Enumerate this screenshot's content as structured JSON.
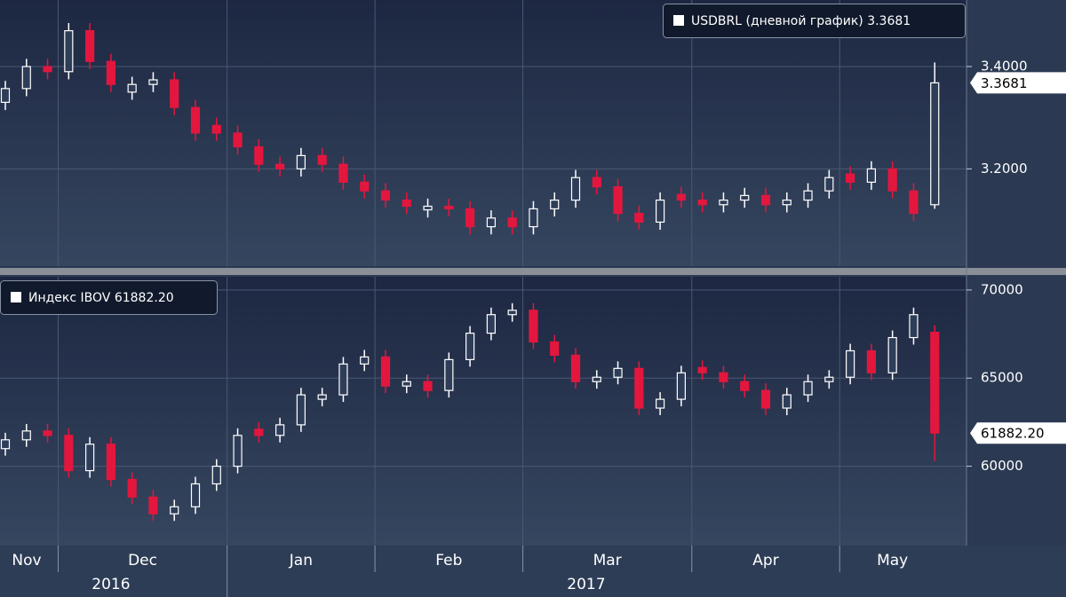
{
  "x_axis": {
    "months": [
      "Nov",
      "Nov",
      "Nov",
      "Dec",
      "Dec",
      "Dec",
      "Dec",
      "Dec",
      "Dec",
      "Dec",
      "Dec",
      "Jan",
      "Jan",
      "Jan",
      "Jan",
      "Jan",
      "Jan",
      "Jan",
      "Feb",
      "Feb",
      "Feb",
      "Feb",
      "Feb",
      "Feb",
      "Feb",
      "Mar",
      "Mar",
      "Mar",
      "Mar",
      "Mar",
      "Mar",
      "Mar",
      "Mar",
      "Apr",
      "Apr",
      "Apr",
      "Apr",
      "Apr",
      "Apr",
      "Apr",
      "May",
      "May",
      "May",
      "May",
      "May"
    ],
    "years": [
      "2016",
      "2016",
      "2016",
      "2016",
      "2016",
      "2016",
      "2016",
      "2016",
      "2016",
      "2016",
      "2016",
      "2017",
      "2017",
      "2017",
      "2017",
      "2017",
      "2017",
      "2017",
      "2017",
      "2017",
      "2017",
      "2017",
      "2017",
      "2017",
      "2017",
      "2017",
      "2017",
      "2017",
      "2017",
      "2017",
      "2017",
      "2017",
      "2017",
      "2017",
      "2017",
      "2017",
      "2017",
      "2017",
      "2017",
      "2017",
      "2017",
      "2017",
      "2017",
      "2017",
      "2017"
    ]
  },
  "chart_data": [
    {
      "type": "candlestick",
      "name": "USDBRL (дневной график)",
      "last_value_label": "3.3681",
      "up_color": "#ffffff",
      "down_color": "#e3173e",
      "open": [
        3.33,
        3.357,
        3.4,
        3.39,
        3.47,
        3.41,
        3.35,
        3.365,
        3.374,
        3.32,
        3.285,
        3.27,
        3.243,
        3.209,
        3.2,
        3.226,
        3.209,
        3.174,
        3.157,
        3.139,
        3.12,
        3.127,
        3.122,
        3.087,
        3.104,
        3.087,
        3.122,
        3.139,
        3.183,
        3.165,
        3.113,
        3.096,
        3.15,
        3.139,
        3.13,
        3.139,
        3.148,
        3.13,
        3.139,
        3.157,
        3.19,
        3.174,
        3.2,
        3.157,
        3.13
      ],
      "high": [
        3.372,
        3.415,
        3.415,
        3.485,
        3.485,
        3.425,
        3.38,
        3.389,
        3.389,
        3.335,
        3.3,
        3.285,
        3.258,
        3.224,
        3.241,
        3.241,
        3.224,
        3.189,
        3.172,
        3.154,
        3.142,
        3.142,
        3.137,
        3.119,
        3.119,
        3.137,
        3.154,
        3.198,
        3.198,
        3.18,
        3.128,
        3.154,
        3.165,
        3.154,
        3.154,
        3.163,
        3.163,
        3.154,
        3.172,
        3.198,
        3.205,
        3.215,
        3.215,
        3.172,
        3.408
      ],
      "low": [
        3.315,
        3.342,
        3.375,
        3.375,
        3.395,
        3.35,
        3.335,
        3.35,
        3.305,
        3.255,
        3.255,
        3.228,
        3.194,
        3.185,
        3.185,
        3.194,
        3.159,
        3.142,
        3.124,
        3.112,
        3.105,
        3.107,
        3.072,
        3.072,
        3.072,
        3.072,
        3.107,
        3.124,
        3.15,
        3.098,
        3.081,
        3.081,
        3.124,
        3.115,
        3.115,
        3.124,
        3.115,
        3.115,
        3.124,
        3.142,
        3.159,
        3.159,
        3.142,
        3.098,
        3.122
      ],
      "close": [
        3.357,
        3.4,
        3.39,
        3.47,
        3.41,
        3.365,
        3.365,
        3.374,
        3.32,
        3.27,
        3.27,
        3.243,
        3.209,
        3.2,
        3.226,
        3.209,
        3.174,
        3.157,
        3.139,
        3.127,
        3.127,
        3.122,
        3.087,
        3.104,
        3.087,
        3.122,
        3.139,
        3.183,
        3.165,
        3.113,
        3.096,
        3.139,
        3.139,
        3.13,
        3.139,
        3.148,
        3.13,
        3.139,
        3.157,
        3.183,
        3.174,
        3.2,
        3.157,
        3.113,
        3.3681
      ],
      "ylim": [
        3.01,
        3.53
      ],
      "yticks": [
        {
          "value": 3.2,
          "label": "3.2000"
        },
        {
          "value": 3.4,
          "label": "3.4000"
        }
      ]
    },
    {
      "type": "candlestick",
      "name": "Индекс IBOV",
      "last_value_label": "61882.20",
      "up_color": "#ffffff",
      "down_color": "#e3173e",
      "open": [
        61000,
        61500,
        62000,
        61750,
        59750,
        61250,
        59250,
        58250,
        57300,
        57700,
        59000,
        60000,
        62100,
        61750,
        62350,
        63800,
        64050,
        65800,
        66200,
        64550,
        64800,
        64300,
        66050,
        67550,
        68600,
        68850,
        67050,
        66300,
        64800,
        65050,
        65550,
        63300,
        63800,
        65600,
        65300,
        64800,
        64300,
        63300,
        64050,
        64800,
        65050,
        66550,
        65300,
        67300,
        67600
      ],
      "high": [
        61900,
        62400,
        62400,
        62150,
        61650,
        61650,
        59650,
        58650,
        58100,
        59400,
        60400,
        62150,
        62500,
        62750,
        64450,
        64450,
        66200,
        66600,
        66600,
        65200,
        65200,
        66450,
        67950,
        69000,
        69250,
        69250,
        67450,
        66700,
        65450,
        65950,
        65950,
        64200,
        65700,
        66000,
        65700,
        65200,
        64700,
        64450,
        65200,
        65450,
        66950,
        66950,
        67700,
        69000,
        68000
      ],
      "low": [
        60600,
        61100,
        61350,
        59350,
        59350,
        58850,
        57850,
        56900,
        56900,
        57300,
        58600,
        59600,
        61350,
        61350,
        61950,
        63400,
        63650,
        65400,
        64150,
        64150,
        63900,
        63900,
        65650,
        67150,
        68200,
        66650,
        65900,
        64400,
        64400,
        64650,
        62900,
        62900,
        63400,
        64900,
        64400,
        63900,
        62900,
        62900,
        63650,
        64400,
        64650,
        64900,
        64900,
        66900,
        60300
      ],
      "close": [
        61500,
        62000,
        61750,
        59750,
        61250,
        59250,
        58250,
        57300,
        57700,
        59000,
        60000,
        61750,
        61750,
        62350,
        64050,
        64050,
        65800,
        66200,
        64550,
        64800,
        64300,
        66050,
        67550,
        68600,
        68850,
        67050,
        66300,
        64800,
        65050,
        65550,
        63300,
        63800,
        65300,
        65300,
        64800,
        64300,
        63300,
        64050,
        64800,
        65050,
        66550,
        65300,
        67300,
        68600,
        61882.2
      ],
      "ylim": [
        55500,
        70750
      ],
      "yticks": [
        60000,
        65000,
        70000
      ]
    }
  ]
}
